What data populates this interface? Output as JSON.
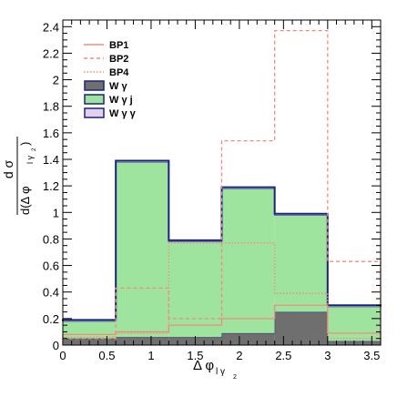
{
  "chart_data": {
    "type": "area",
    "subtype": "stacked-step-histogram",
    "bin_edges": [
      0,
      0.6,
      1.2,
      1.8,
      2.4,
      3.0,
      3.6
    ],
    "xlim": [
      0,
      3.6
    ],
    "ylim": [
      0,
      2.45
    ],
    "xticks": [
      "0",
      "0.5",
      "1",
      "1.5",
      "2",
      "2.5",
      "3",
      "3.5"
    ],
    "yticks": [
      "0",
      "0.2",
      "0.4",
      "0.6",
      "0.8",
      "1",
      "1.2",
      "1.4",
      "1.6",
      "1.8",
      "2",
      "2.2",
      "2.4"
    ],
    "xlabel": "Δ φ",
    "xlabel_sub": "l γ",
    "xlabel_subsub": "2",
    "ylabel_num": "d σ",
    "ylabel_den": "d(Δ φ",
    "ylabel_den_sub": "l γ",
    "ylabel_den_subsub": "2",
    "ylabel_den_close": ")",
    "grid": false,
    "legend_position": "top-left",
    "stack": [
      {
        "name": "W γ",
        "color": "#6f6f6f",
        "edge": "#1a237e",
        "values": [
          0.05,
          0.06,
          0.06,
          0.09,
          0.25,
          0.03
        ]
      },
      {
        "name": "W γ j",
        "color": "#9ee39e",
        "edge": "#1a237e",
        "values": [
          0.13,
          1.32,
          0.72,
          1.09,
          0.73,
          0.26
        ]
      },
      {
        "name": "W γ γ",
        "color": "#e3cff0",
        "edge": "#1a237e",
        "values": [
          0.01,
          0.01,
          0.01,
          0.01,
          0.01,
          0.01
        ]
      }
    ],
    "lines": [
      {
        "name": "BP1",
        "color": "#f28b7d",
        "dash": "",
        "values": [
          0.08,
          0.1,
          0.15,
          0.2,
          0.3,
          0.09
        ]
      },
      {
        "name": "BP2",
        "color": "#f28b7d",
        "dash": "4,3",
        "values": [
          0.05,
          0.43,
          0.2,
          1.54,
          2.37,
          0.63
        ]
      },
      {
        "name": "BP4",
        "color": "#f28b7d",
        "dash": "1.5,2",
        "values": [
          0.06,
          0.09,
          0.77,
          0.77,
          0.39,
          0.05
        ]
      }
    ],
    "legend": [
      {
        "label": "BP1",
        "kind": "line",
        "color": "#f28b7d",
        "dash": ""
      },
      {
        "label": "BP2",
        "kind": "line",
        "color": "#f28b7d",
        "dash": "4,3"
      },
      {
        "label": "BP4",
        "kind": "line",
        "color": "#f28b7d",
        "dash": "1.5,2"
      },
      {
        "label": "W γ",
        "kind": "box",
        "color": "#6f6f6f",
        "edge": "#1a237e"
      },
      {
        "label": "W γ j",
        "kind": "box",
        "color": "#9ee39e",
        "edge": "#1a237e"
      },
      {
        "label": "W γ γ",
        "kind": "box",
        "color": "#e3cff0",
        "edge": "#1a237e"
      }
    ]
  }
}
